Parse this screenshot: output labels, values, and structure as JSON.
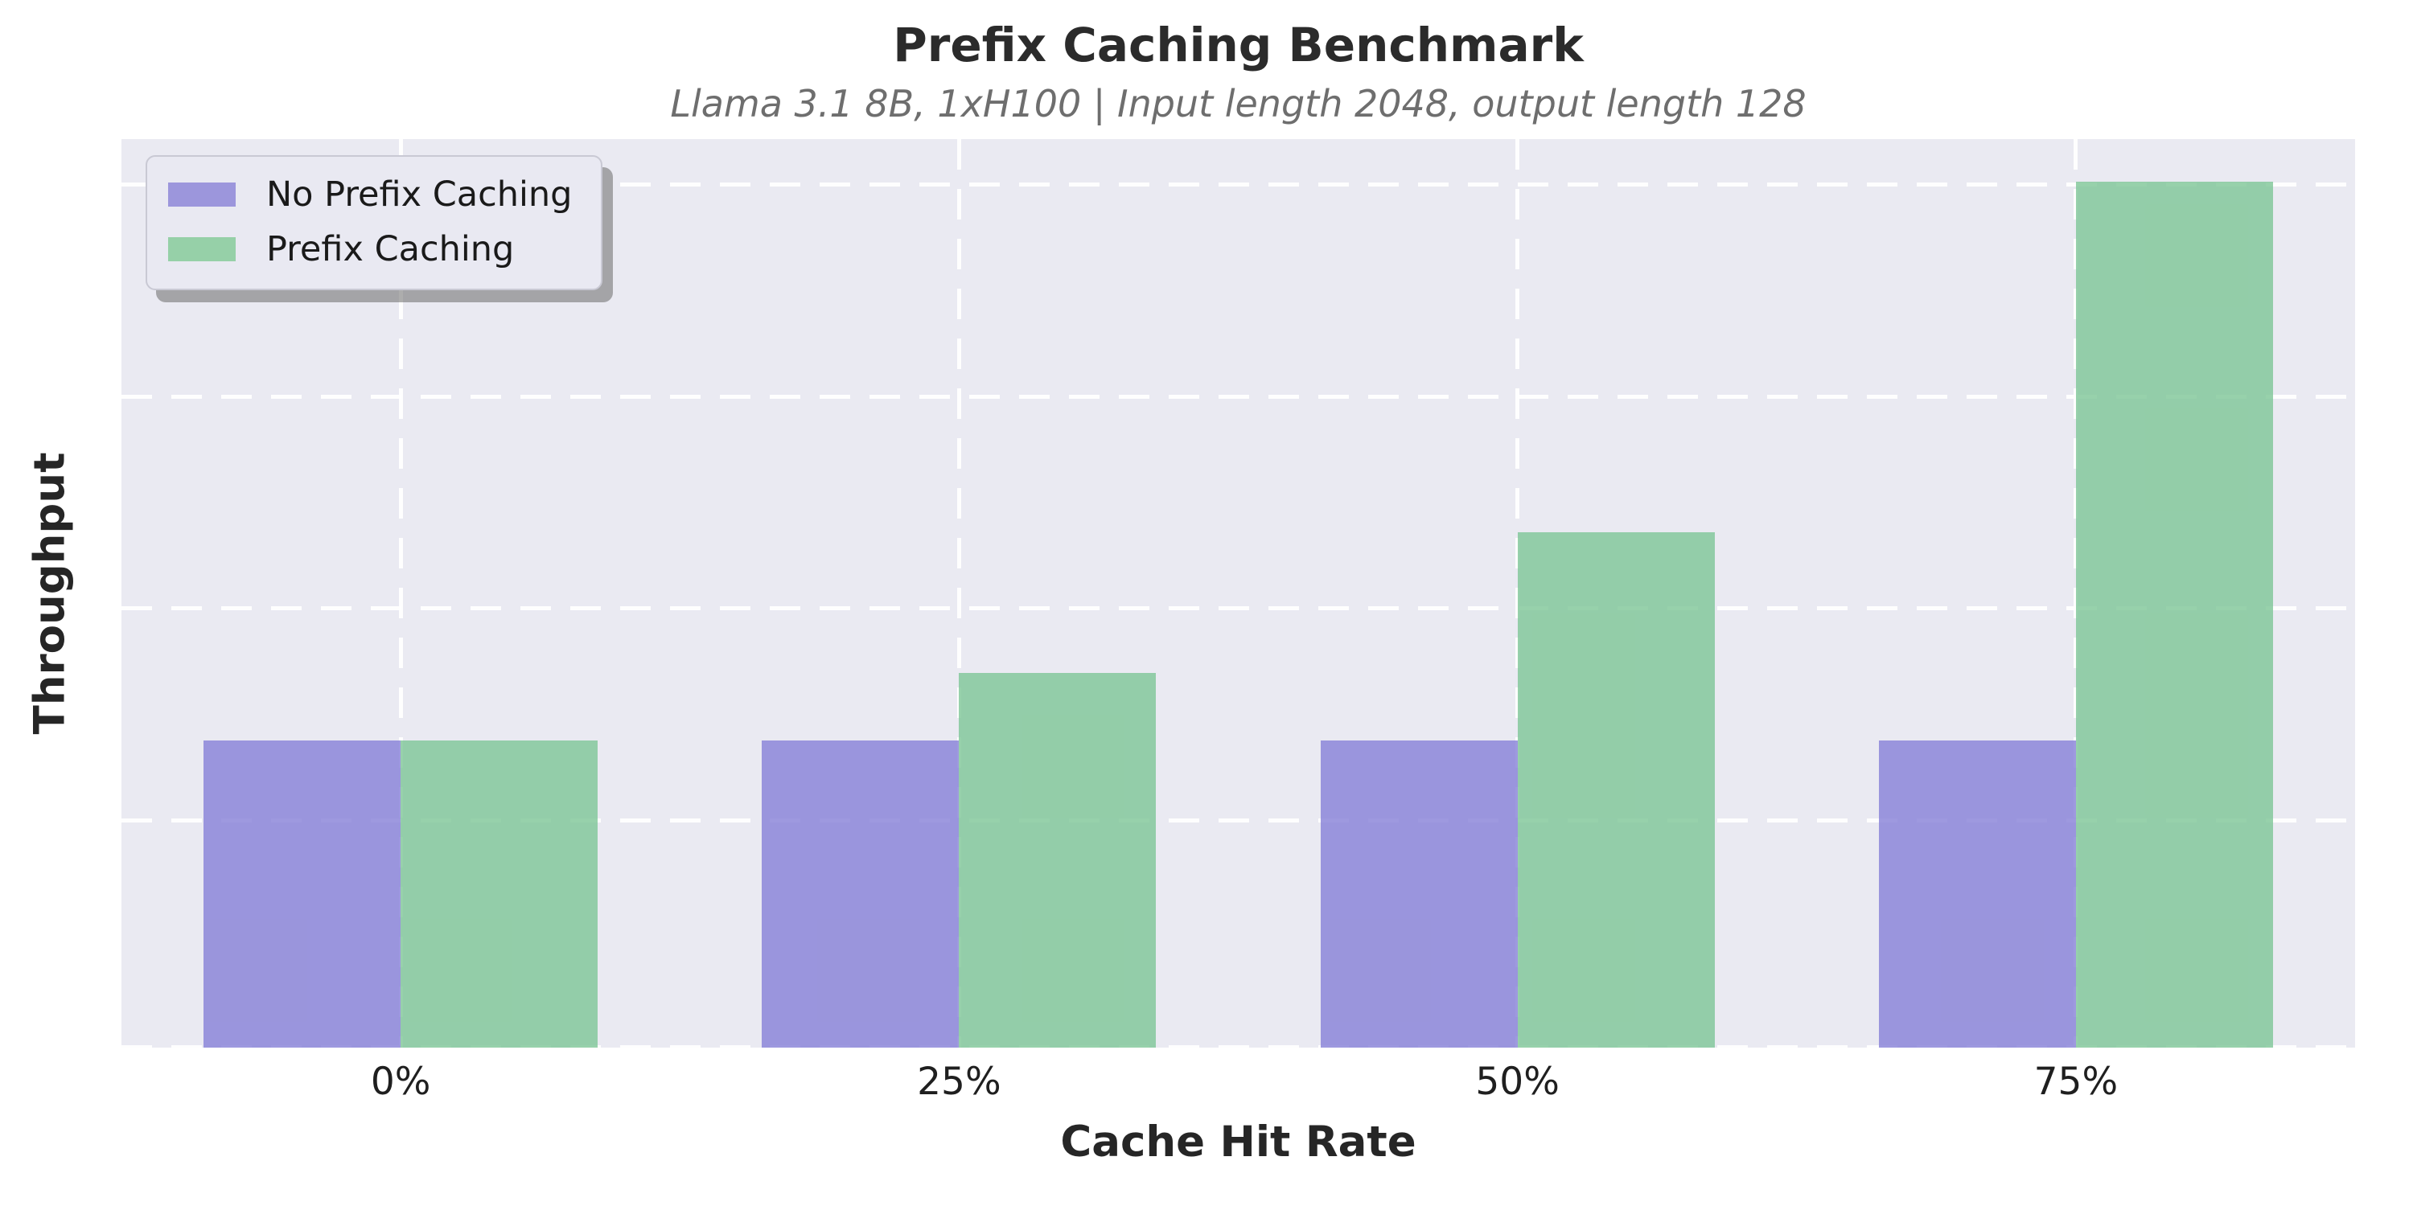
{
  "chart_data": {
    "type": "bar",
    "title": "Prefix Caching Benchmark",
    "subtitle": "Llama 3.1 8B, 1xH100 | Input length 2048, output length 128",
    "xlabel": "Cache Hit Rate",
    "ylabel": "Throughput",
    "categories": [
      "0%",
      "25%",
      "50%",
      "75%"
    ],
    "series": [
      {
        "name": "No Prefix Caching",
        "color": "#9c96dc",
        "bar_rgba": "rgba(134,128,215,0.8)",
        "values": [
          1.0,
          1.0,
          1.0,
          1.0
        ]
      },
      {
        "name": "Prefix Caching",
        "color": "#96d0a8",
        "bar_rgba": "rgba(125,198,150,0.8)",
        "values": [
          1.0,
          1.22,
          1.68,
          2.82
        ]
      }
    ],
    "values_unit": "throughput relative to No Prefix Caching baseline (y axis has no numeric tick labels)",
    "ylim": [
      0,
      2.96
    ],
    "y_tick_labels": [],
    "gridline_values": [
      0,
      0.74,
      1.43,
      2.12,
      2.81
    ],
    "grid": "dashed white horizontal and vertical lines",
    "legend_position": "upper-left",
    "plot_background": "#eaeaf2"
  }
}
